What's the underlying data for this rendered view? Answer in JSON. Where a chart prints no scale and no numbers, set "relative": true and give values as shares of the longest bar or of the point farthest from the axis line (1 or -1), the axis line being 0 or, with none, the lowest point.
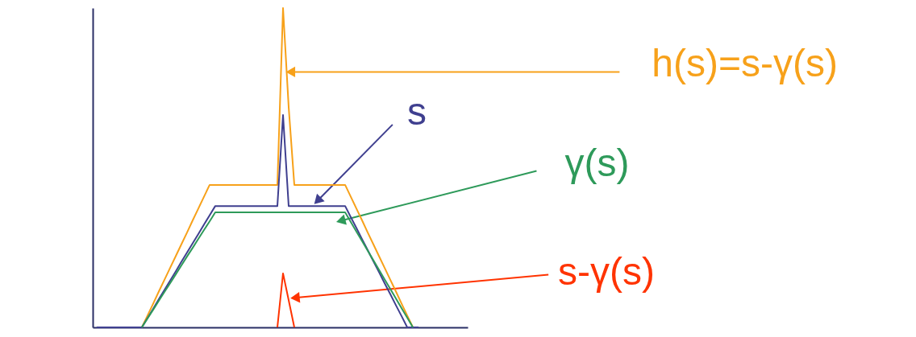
{
  "chart_data": {
    "type": "line",
    "relative": true,
    "categories": [
      null,
      null,
      null,
      null,
      null,
      null,
      null,
      null,
      null,
      null,
      null,
      null,
      null,
      null,
      null,
      null,
      null,
      null,
      null,
      null,
      null,
      null,
      null,
      null,
      null,
      null,
      null,
      null,
      null,
      null,
      null,
      null,
      null,
      null,
      null,
      null,
      null,
      null,
      null,
      null,
      null,
      null,
      null,
      null,
      null,
      null,
      null,
      null,
      null,
      null,
      null,
      null,
      null,
      null,
      null,
      null,
      null,
      null
    ],
    "series": [
      {
        "name": "h(s)=s-γ(s)",
        "color": "#f7a11a",
        "values": [
          null,
          null,
          null,
          null,
          null,
          null,
          null,
          null,
          0,
          0.037,
          0.074,
          0.112,
          0.149,
          0.186,
          0.223,
          0.26,
          0.297,
          0.335,
          0.372,
          0.409,
          0.446,
          0.446,
          0.446,
          0.446,
          0.446,
          0.446,
          0.446,
          0.446,
          0.446,
          0.446,
          0.446,
          0.446,
          0.446,
          1,
          0.69,
          0.446,
          0.446,
          0.446,
          0.446,
          0.446,
          0.446,
          0.446,
          0.446,
          0.446,
          0.446,
          0.409,
          0.372,
          0.335,
          0.297,
          0.26,
          0.223,
          0.186,
          0.149,
          0.112,
          0.074,
          0.037,
          0,
          null
        ]
      },
      {
        "name": "s",
        "color": "#3f3f8f",
        "values": [
          0,
          0,
          0,
          0,
          0,
          0,
          0,
          0,
          0,
          0.029,
          0.058,
          0.088,
          0.117,
          0.146,
          0.175,
          0.205,
          0.234,
          0.263,
          0.292,
          0.322,
          0.351,
          0.38,
          0.38,
          0.38,
          0.38,
          0.38,
          0.38,
          0.38,
          0.38,
          0.38,
          0.38,
          0.38,
          0.38,
          0.665,
          0.38,
          0.38,
          0.38,
          0.38,
          0.38,
          0.38,
          0.38,
          0.38,
          0.38,
          0.38,
          0.38,
          0.345,
          0.311,
          0.276,
          0.242,
          0.207,
          0.173,
          0.138,
          0.104,
          0.069,
          0.035,
          0,
          0,
          0
        ]
      },
      {
        "name": "γ(s)",
        "color": "#2e9a5a",
        "values": [
          null,
          null,
          null,
          null,
          null,
          null,
          null,
          null,
          0,
          0.028,
          0.055,
          0.083,
          0.111,
          0.138,
          0.166,
          0.194,
          0.222,
          0.249,
          0.277,
          0.305,
          0.332,
          0.36,
          0.36,
          0.36,
          0.36,
          0.36,
          0.36,
          0.36,
          0.36,
          0.36,
          0.36,
          0.36,
          0.36,
          0.36,
          0.36,
          0.36,
          0.36,
          0.36,
          0.36,
          0.36,
          0.36,
          0.36,
          0.36,
          0.36,
          0.36,
          0.33,
          0.3,
          0.27,
          0.24,
          0.21,
          0.18,
          0.15,
          0.12,
          0.09,
          0.06,
          0.03,
          0,
          null
        ]
      },
      {
        "name": "s-γ(s)",
        "color": "#ff3300",
        "values": [
          null,
          null,
          null,
          null,
          null,
          null,
          null,
          null,
          null,
          null,
          null,
          null,
          null,
          null,
          null,
          null,
          null,
          null,
          null,
          null,
          null,
          null,
          null,
          null,
          null,
          null,
          null,
          null,
          null,
          null,
          null,
          null,
          0,
          0.169,
          0.085,
          0,
          null,
          null,
          null,
          null,
          null,
          null,
          null,
          null,
          null,
          null,
          null,
          null,
          null,
          null,
          null,
          null,
          null,
          null,
          null,
          null,
          null,
          null
        ]
      }
    ]
  }
}
